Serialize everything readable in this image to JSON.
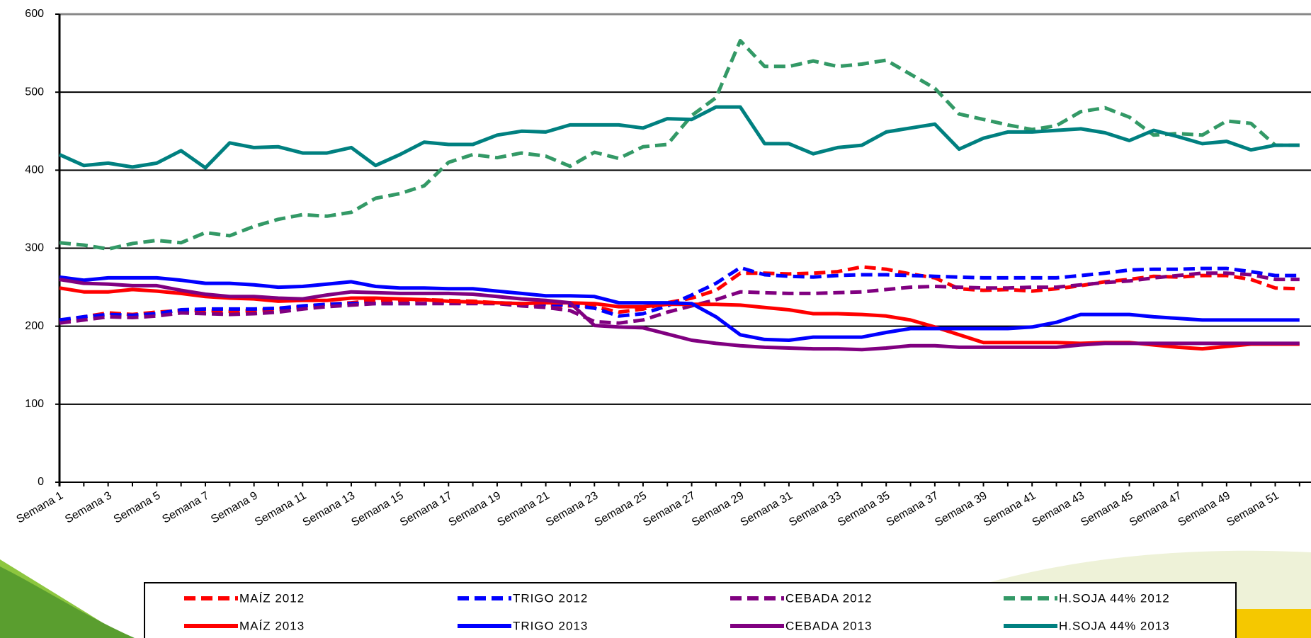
{
  "chart_data": {
    "type": "line",
    "categories": [
      "Semana 1",
      null,
      "Semana 3",
      null,
      "Semana 5",
      null,
      "Semana 7",
      null,
      "Semana 9",
      null,
      "Semana 11",
      null,
      "Semana 13",
      null,
      "Semana 15",
      null,
      "Semana 17",
      null,
      "Semana 19",
      null,
      "Semana 21",
      null,
      "Semana 23",
      null,
      "Semana 25",
      null,
      "Semana 27",
      null,
      "Semana 29",
      null,
      "Semana 31",
      null,
      "Semana 33",
      null,
      "Semana 35",
      null,
      "Semana 37",
      null,
      "Semana 39",
      null,
      "Semana 41",
      null,
      "Semana 43",
      null,
      "Semana 45",
      null,
      "Semana 47",
      null,
      "Semana 49",
      null,
      "Semana 51",
      null
    ],
    "ylim": [
      0,
      600
    ],
    "yticks": [
      0,
      100,
      200,
      300,
      400,
      500,
      600
    ],
    "grid": true,
    "legend": "bottom",
    "series": [
      {
        "name": "MAÍZ 2012",
        "color": "#ff0000",
        "dashed": true,
        "values": [
          206,
          212,
          217,
          215,
          218,
          220,
          220,
          219,
          220,
          222,
          225,
          228,
          230,
          233,
          233,
          234,
          233,
          232,
          230,
          228,
          226,
          226,
          225,
          218,
          222,
          230,
          236,
          246,
          268,
          268,
          267,
          268,
          270,
          276,
          273,
          267,
          262,
          248,
          246,
          247,
          245,
          248,
          252,
          257,
          260,
          264,
          263,
          265,
          265,
          260,
          249,
          248
        ]
      },
      {
        "name": "TRIGO 2012",
        "color": "#0000ff",
        "dashed": true,
        "values": [
          208,
          212,
          215,
          214,
          216,
          221,
          222,
          222,
          222,
          223,
          226,
          228,
          229,
          229,
          229,
          229,
          230,
          230,
          230,
          229,
          228,
          227,
          223,
          213,
          216,
          226,
          240,
          255,
          275,
          266,
          264,
          263,
          265,
          266,
          266,
          265,
          264,
          263,
          262,
          262,
          262,
          262,
          265,
          268,
          272,
          273,
          273,
          274,
          274,
          270,
          265,
          265
        ]
      },
      {
        "name": "CEBADA 2012",
        "color": "#800080",
        "dashed": true,
        "values": [
          204,
          208,
          212,
          211,
          213,
          217,
          216,
          215,
          216,
          218,
          222,
          225,
          227,
          229,
          229,
          229,
          229,
          229,
          229,
          226,
          224,
          220,
          206,
          204,
          208,
          218,
          226,
          234,
          244,
          243,
          242,
          242,
          243,
          244,
          247,
          250,
          251,
          250,
          249,
          249,
          250,
          250,
          253,
          256,
          258,
          262,
          265,
          268,
          268,
          266,
          260,
          260
        ]
      },
      {
        "name": "H.SOJA 44% 2012",
        "color": "#339966",
        "dashed": true,
        "values": [
          307,
          304,
          299,
          306,
          310,
          307,
          320,
          316,
          328,
          337,
          343,
          341,
          346,
          364,
          370,
          380,
          410,
          420,
          416,
          422,
          418,
          405,
          423,
          415,
          430,
          433,
          470,
          493,
          566,
          533,
          533,
          540,
          533,
          536,
          541,
          523,
          505,
          472,
          465,
          458,
          452,
          457,
          475,
          480,
          468,
          445,
          447,
          445,
          463,
          460,
          432,
          432
        ]
      },
      {
        "name": "MAÍZ 2013",
        "color": "#ff0000",
        "dashed": false,
        "values": [
          249,
          244,
          244,
          247,
          245,
          242,
          238,
          236,
          235,
          232,
          233,
          233,
          236,
          236,
          235,
          234,
          232,
          231,
          230,
          229,
          230,
          230,
          229,
          225,
          225,
          228,
          228,
          228,
          227,
          224,
          221,
          216,
          216,
          215,
          213,
          208,
          199,
          189,
          179,
          179,
          179,
          179,
          178,
          179,
          179,
          176,
          173,
          171,
          174,
          177,
          177,
          177
        ]
      },
      {
        "name": "TRIGO 2013",
        "color": "#0000ff",
        "dashed": false,
        "values": [
          263,
          259,
          262,
          262,
          262,
          259,
          255,
          255,
          253,
          250,
          251,
          254,
          257,
          251,
          249,
          249,
          248,
          248,
          245,
          242,
          239,
          239,
          238,
          230,
          230,
          230,
          229,
          212,
          189,
          183,
          182,
          186,
          186,
          186,
          192,
          197,
          197,
          197,
          197,
          197,
          199,
          205,
          215,
          215,
          215,
          212,
          210,
          208,
          208,
          208,
          208,
          208
        ]
      },
      {
        "name": "CEBADA 2013",
        "color": "#800080",
        "dashed": false,
        "values": [
          260,
          255,
          254,
          252,
          252,
          246,
          241,
          238,
          238,
          236,
          235,
          240,
          244,
          243,
          242,
          242,
          242,
          241,
          238,
          235,
          233,
          230,
          201,
          199,
          198,
          190,
          182,
          178,
          175,
          173,
          172,
          171,
          171,
          170,
          172,
          175,
          175,
          173,
          173,
          173,
          173,
          173,
          176,
          178,
          178,
          178,
          178,
          178,
          178,
          178,
          178,
          178
        ]
      },
      {
        "name": "H.SOJA 44% 2013",
        "color": "#008080",
        "dashed": false,
        "values": [
          420,
          406,
          409,
          404,
          409,
          425,
          403,
          435,
          429,
          430,
          422,
          422,
          429,
          406,
          420,
          436,
          433,
          433,
          445,
          450,
          449,
          458,
          458,
          458,
          454,
          466,
          465,
          481,
          481,
          434,
          434,
          421,
          429,
          432,
          449,
          454,
          459,
          427,
          441,
          449,
          449,
          451,
          453,
          448,
          438,
          451,
          443,
          434,
          437,
          426,
          432,
          432
        ]
      }
    ]
  }
}
